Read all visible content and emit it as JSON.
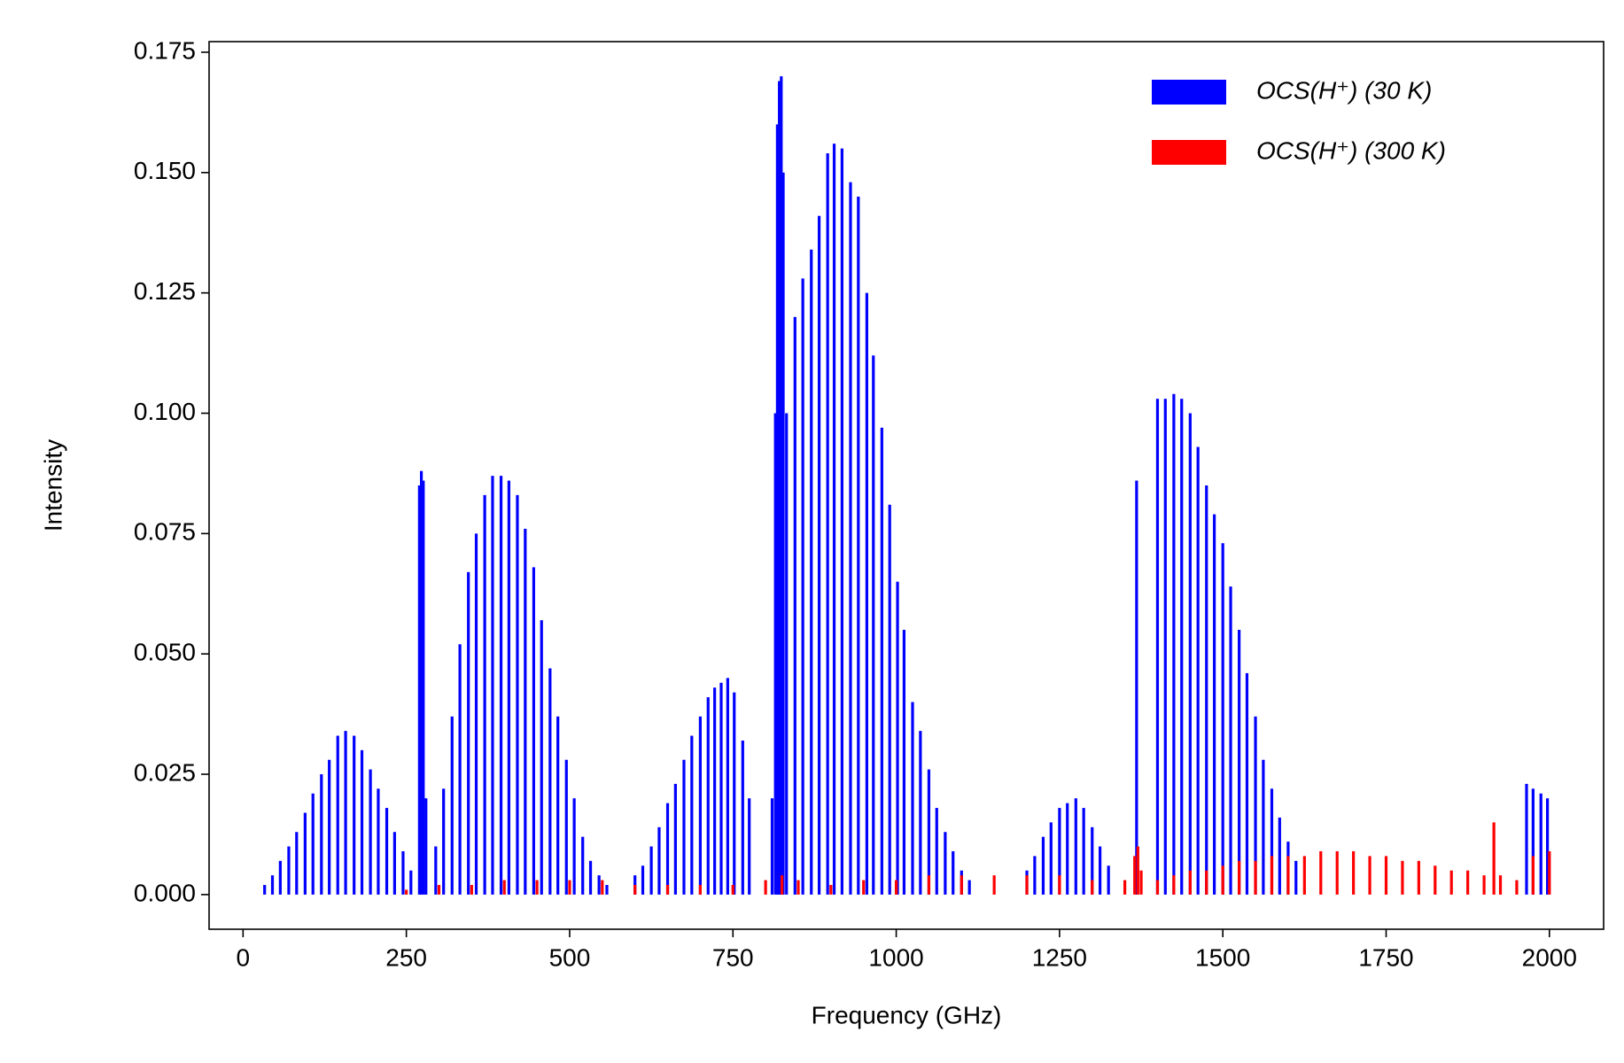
{
  "chart_data": {
    "type": "bar",
    "x_label": "Frequency (GHz)",
    "y_label": "Intensity",
    "xlim": [
      -52,
      2083
    ],
    "ylim": [
      -0.0072,
      0.1772
    ],
    "xticks": [
      0,
      250,
      500,
      750,
      1000,
      1250,
      1500,
      1750,
      2000
    ],
    "yticks": [
      {
        "value": 0,
        "label": "0.000"
      },
      {
        "value": 0.025,
        "label": "0.025"
      },
      {
        "value": 0.05,
        "label": "0.050"
      },
      {
        "value": 0.075,
        "label": "0.075"
      },
      {
        "value": 0.1,
        "label": "0.100"
      },
      {
        "value": 0.125,
        "label": "0.125"
      },
      {
        "value": 0.15,
        "label": "0.150"
      },
      {
        "value": 0.175,
        "label": "0.175"
      }
    ],
    "legend": "upper right",
    "series": [
      {
        "name": "OCS(H⁺) (30 K)",
        "color": "#0000ff",
        "x": [
          33,
          45,
          57,
          70,
          82,
          95,
          107,
          120,
          132,
          145,
          157,
          170,
          182,
          195,
          207,
          220,
          232,
          245,
          257,
          270,
          273,
          276,
          280,
          295,
          307,
          320,
          332,
          345,
          357,
          370,
          382,
          395,
          407,
          420,
          432,
          445,
          457,
          470,
          482,
          495,
          507,
          520,
          532,
          545,
          557,
          600,
          612,
          625,
          637,
          650,
          662,
          675,
          687,
          700,
          712,
          722,
          732,
          742,
          752,
          765,
          775,
          810,
          815,
          818,
          821,
          824,
          827,
          832,
          845,
          857,
          870,
          882,
          895,
          905,
          917,
          930,
          942,
          955,
          965,
          978,
          990,
          1002,
          1012,
          1025,
          1037,
          1050,
          1062,
          1075,
          1087,
          1100,
          1112,
          1200,
          1212,
          1225,
          1237,
          1250,
          1262,
          1275,
          1287,
          1300,
          1312,
          1325,
          1368,
          1400,
          1412,
          1425,
          1437,
          1450,
          1462,
          1475,
          1487,
          1500,
          1512,
          1525,
          1537,
          1550,
          1562,
          1575,
          1587,
          1600,
          1612,
          1965,
          1975,
          1987,
          1997
        ],
        "values": [
          0.002,
          0.004,
          0.007,
          0.01,
          0.013,
          0.017,
          0.021,
          0.025,
          0.028,
          0.033,
          0.034,
          0.033,
          0.03,
          0.026,
          0.022,
          0.018,
          0.013,
          0.009,
          0.005,
          0.085,
          0.088,
          0.086,
          0.02,
          0.01,
          0.022,
          0.037,
          0.052,
          0.067,
          0.075,
          0.083,
          0.087,
          0.087,
          0.086,
          0.083,
          0.076,
          0.068,
          0.057,
          0.047,
          0.037,
          0.028,
          0.02,
          0.012,
          0.007,
          0.004,
          0.002,
          0.004,
          0.006,
          0.01,
          0.014,
          0.019,
          0.023,
          0.028,
          0.033,
          0.037,
          0.041,
          0.043,
          0.044,
          0.045,
          0.042,
          0.032,
          0.02,
          0.02,
          0.1,
          0.16,
          0.169,
          0.17,
          0.15,
          0.1,
          0.12,
          0.128,
          0.134,
          0.141,
          0.154,
          0.156,
          0.155,
          0.148,
          0.145,
          0.125,
          0.112,
          0.097,
          0.081,
          0.065,
          0.055,
          0.04,
          0.034,
          0.026,
          0.018,
          0.013,
          0.009,
          0.005,
          0.003,
          0.005,
          0.008,
          0.012,
          0.015,
          0.018,
          0.019,
          0.02,
          0.018,
          0.014,
          0.01,
          0.006,
          0.086,
          0.103,
          0.103,
          0.104,
          0.103,
          0.1,
          0.093,
          0.085,
          0.079,
          0.073,
          0.064,
          0.055,
          0.046,
          0.037,
          0.028,
          0.022,
          0.016,
          0.011,
          0.007,
          0.023,
          0.022,
          0.021,
          0.02
        ]
      },
      {
        "name": "OCS(H⁺) (300 K)",
        "color": "#ff0000",
        "x": [
          250,
          300,
          350,
          400,
          450,
          500,
          550,
          600,
          650,
          700,
          750,
          800,
          825,
          850,
          900,
          950,
          1000,
          1050,
          1100,
          1150,
          1200,
          1250,
          1300,
          1350,
          1365,
          1370,
          1375,
          1400,
          1425,
          1450,
          1475,
          1500,
          1525,
          1550,
          1575,
          1600,
          1625,
          1650,
          1675,
          1700,
          1725,
          1750,
          1775,
          1800,
          1825,
          1850,
          1875,
          1900,
          1915,
          1925,
          1950,
          1975,
          2000
        ],
        "values": [
          0.001,
          0.002,
          0.002,
          0.003,
          0.003,
          0.003,
          0.003,
          0.002,
          0.002,
          0.002,
          0.002,
          0.003,
          0.004,
          0.003,
          0.002,
          0.003,
          0.003,
          0.004,
          0.004,
          0.004,
          0.004,
          0.004,
          0.003,
          0.003,
          0.008,
          0.01,
          0.005,
          0.003,
          0.004,
          0.005,
          0.005,
          0.006,
          0.007,
          0.007,
          0.008,
          0.008,
          0.008,
          0.009,
          0.009,
          0.009,
          0.008,
          0.008,
          0.007,
          0.007,
          0.006,
          0.005,
          0.005,
          0.004,
          0.015,
          0.004,
          0.003,
          0.008,
          0.009
        ]
      }
    ]
  }
}
